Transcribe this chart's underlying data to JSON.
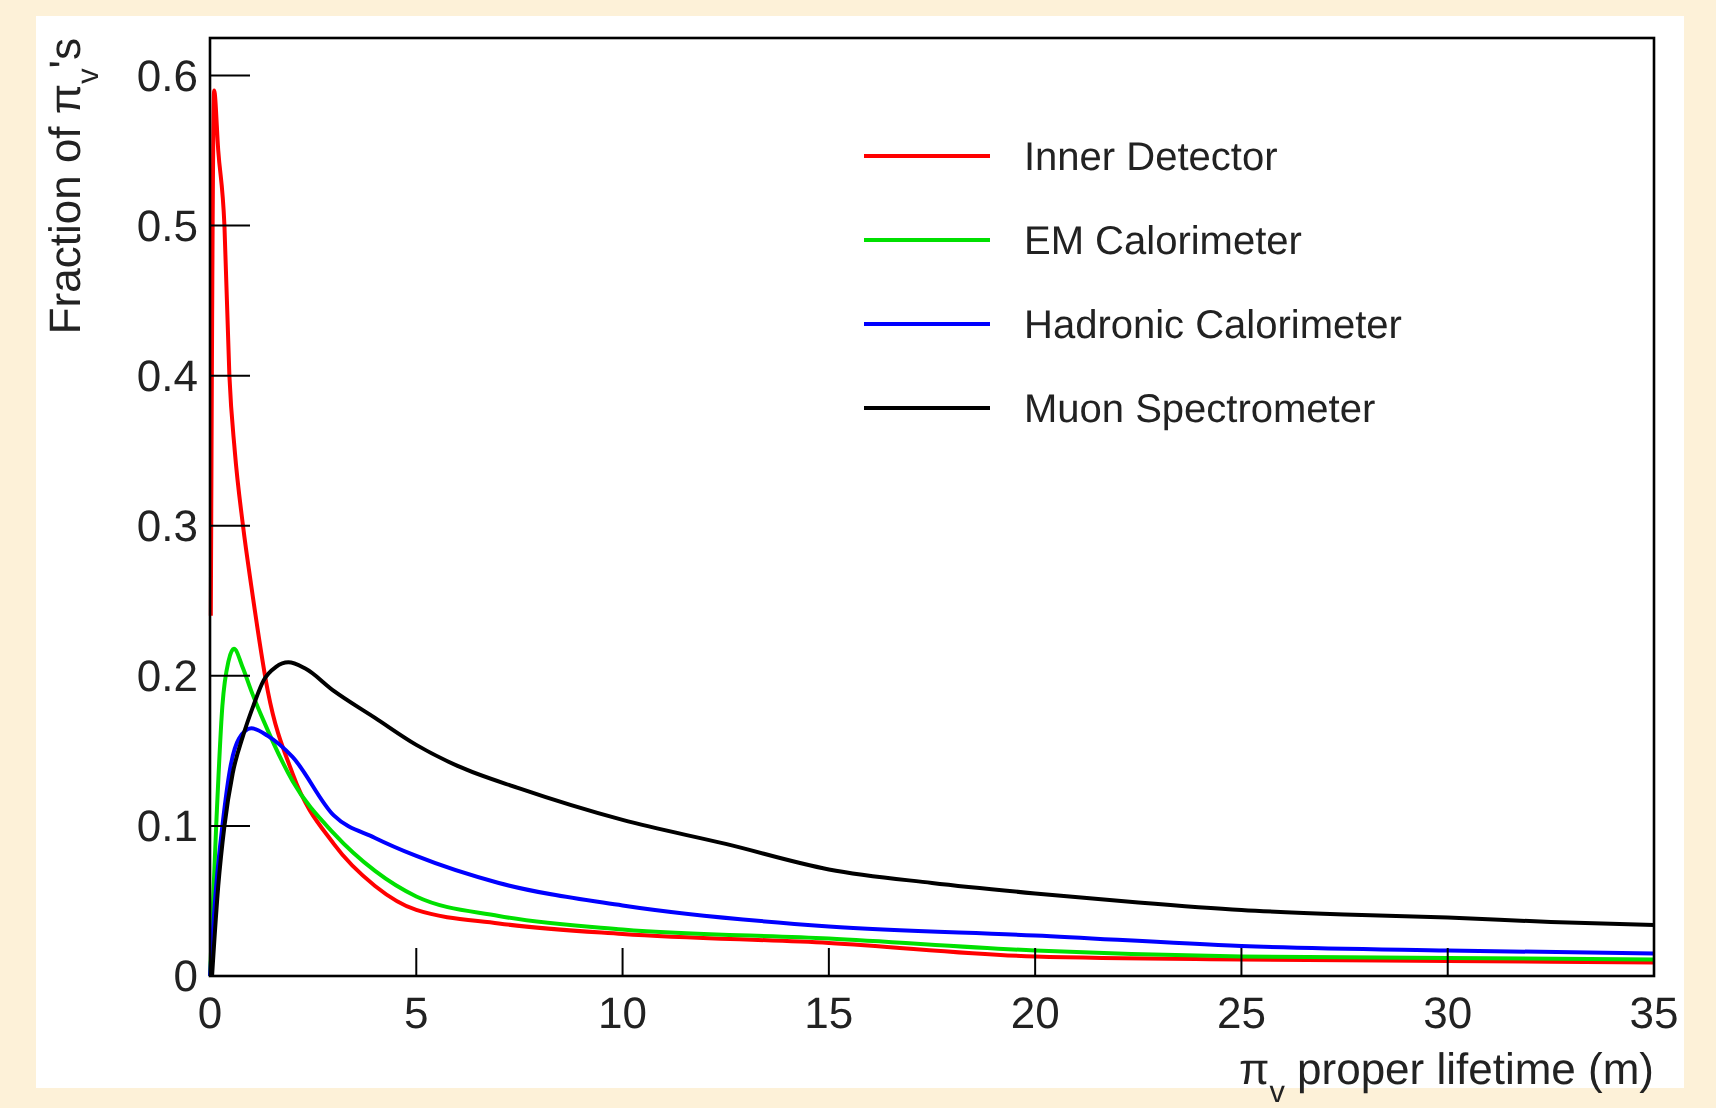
{
  "chart_data": {
    "type": "line",
    "xlabel": "π$_{v}$ proper lifetime (m)",
    "ylabel": "Fraction of π$_{v}$'s",
    "xlim": [
      0,
      35
    ],
    "ylim": [
      0,
      0.625
    ],
    "xticks": [
      0,
      5,
      10,
      15,
      20,
      25,
      30,
      35
    ],
    "yticks": [
      0,
      0.1,
      0.2,
      0.3,
      0.4,
      0.5,
      0.6
    ],
    "grid": false,
    "legend": "top right",
    "marker": "none",
    "line_style": "solid",
    "series": [
      {
        "name": "Inner Detector",
        "color": "#ff0000",
        "x": [
          0.02,
          0.1,
          0.2,
          0.35,
          0.47,
          0.6,
          0.8,
          1.0,
          1.4,
          2,
          3,
          4,
          5,
          7,
          10,
          15,
          20,
          25,
          30,
          35
        ],
        "values": [
          0.24,
          0.59,
          0.55,
          0.5,
          0.4,
          0.35,
          0.3,
          0.26,
          0.19,
          0.135,
          0.088,
          0.06,
          0.044,
          0.035,
          0.028,
          0.022,
          0.013,
          0.011,
          0.01,
          0.009
        ]
      },
      {
        "name": "EM Calorimeter",
        "color": "#00e000",
        "x": [
          0,
          0.15,
          0.3,
          0.45,
          0.58,
          0.8,
          1.0,
          1.3,
          2,
          3,
          4,
          5,
          7,
          10,
          15,
          20,
          25,
          30,
          35
        ],
        "values": [
          0,
          0.1,
          0.18,
          0.21,
          0.218,
          0.205,
          0.19,
          0.17,
          0.13,
          0.095,
          0.07,
          0.053,
          0.04,
          0.031,
          0.025,
          0.017,
          0.013,
          0.012,
          0.011
        ]
      },
      {
        "name": "Hadronic Calorimeter",
        "color": "#0000ff",
        "x": [
          0,
          0.15,
          0.3,
          0.5,
          0.7,
          1.0,
          1.4,
          2,
          3,
          4,
          5,
          7,
          10,
          15,
          20,
          25,
          30,
          35
        ],
        "values": [
          0,
          0.06,
          0.1,
          0.14,
          0.158,
          0.165,
          0.16,
          0.146,
          0.107,
          0.092,
          0.08,
          0.062,
          0.047,
          0.033,
          0.027,
          0.02,
          0.017,
          0.015
        ]
      },
      {
        "name": "Muon Spectrometer",
        "color": "#000000",
        "x": [
          0.05,
          0.2,
          0.35,
          0.55,
          0.8,
          1.05,
          1.3,
          1.6,
          1.9,
          2.3,
          3,
          4,
          5,
          6,
          7.5,
          10,
          12.5,
          15,
          17.5,
          20,
          22.5,
          25,
          27.5,
          30,
          32.5,
          35
        ],
        "values": [
          0,
          0.06,
          0.1,
          0.135,
          0.16,
          0.18,
          0.197,
          0.206,
          0.209,
          0.205,
          0.19,
          0.172,
          0.154,
          0.14,
          0.125,
          0.104,
          0.088,
          0.071,
          0.062,
          0.055,
          0.049,
          0.044,
          0.041,
          0.039,
          0.036,
          0.034
        ]
      }
    ]
  }
}
